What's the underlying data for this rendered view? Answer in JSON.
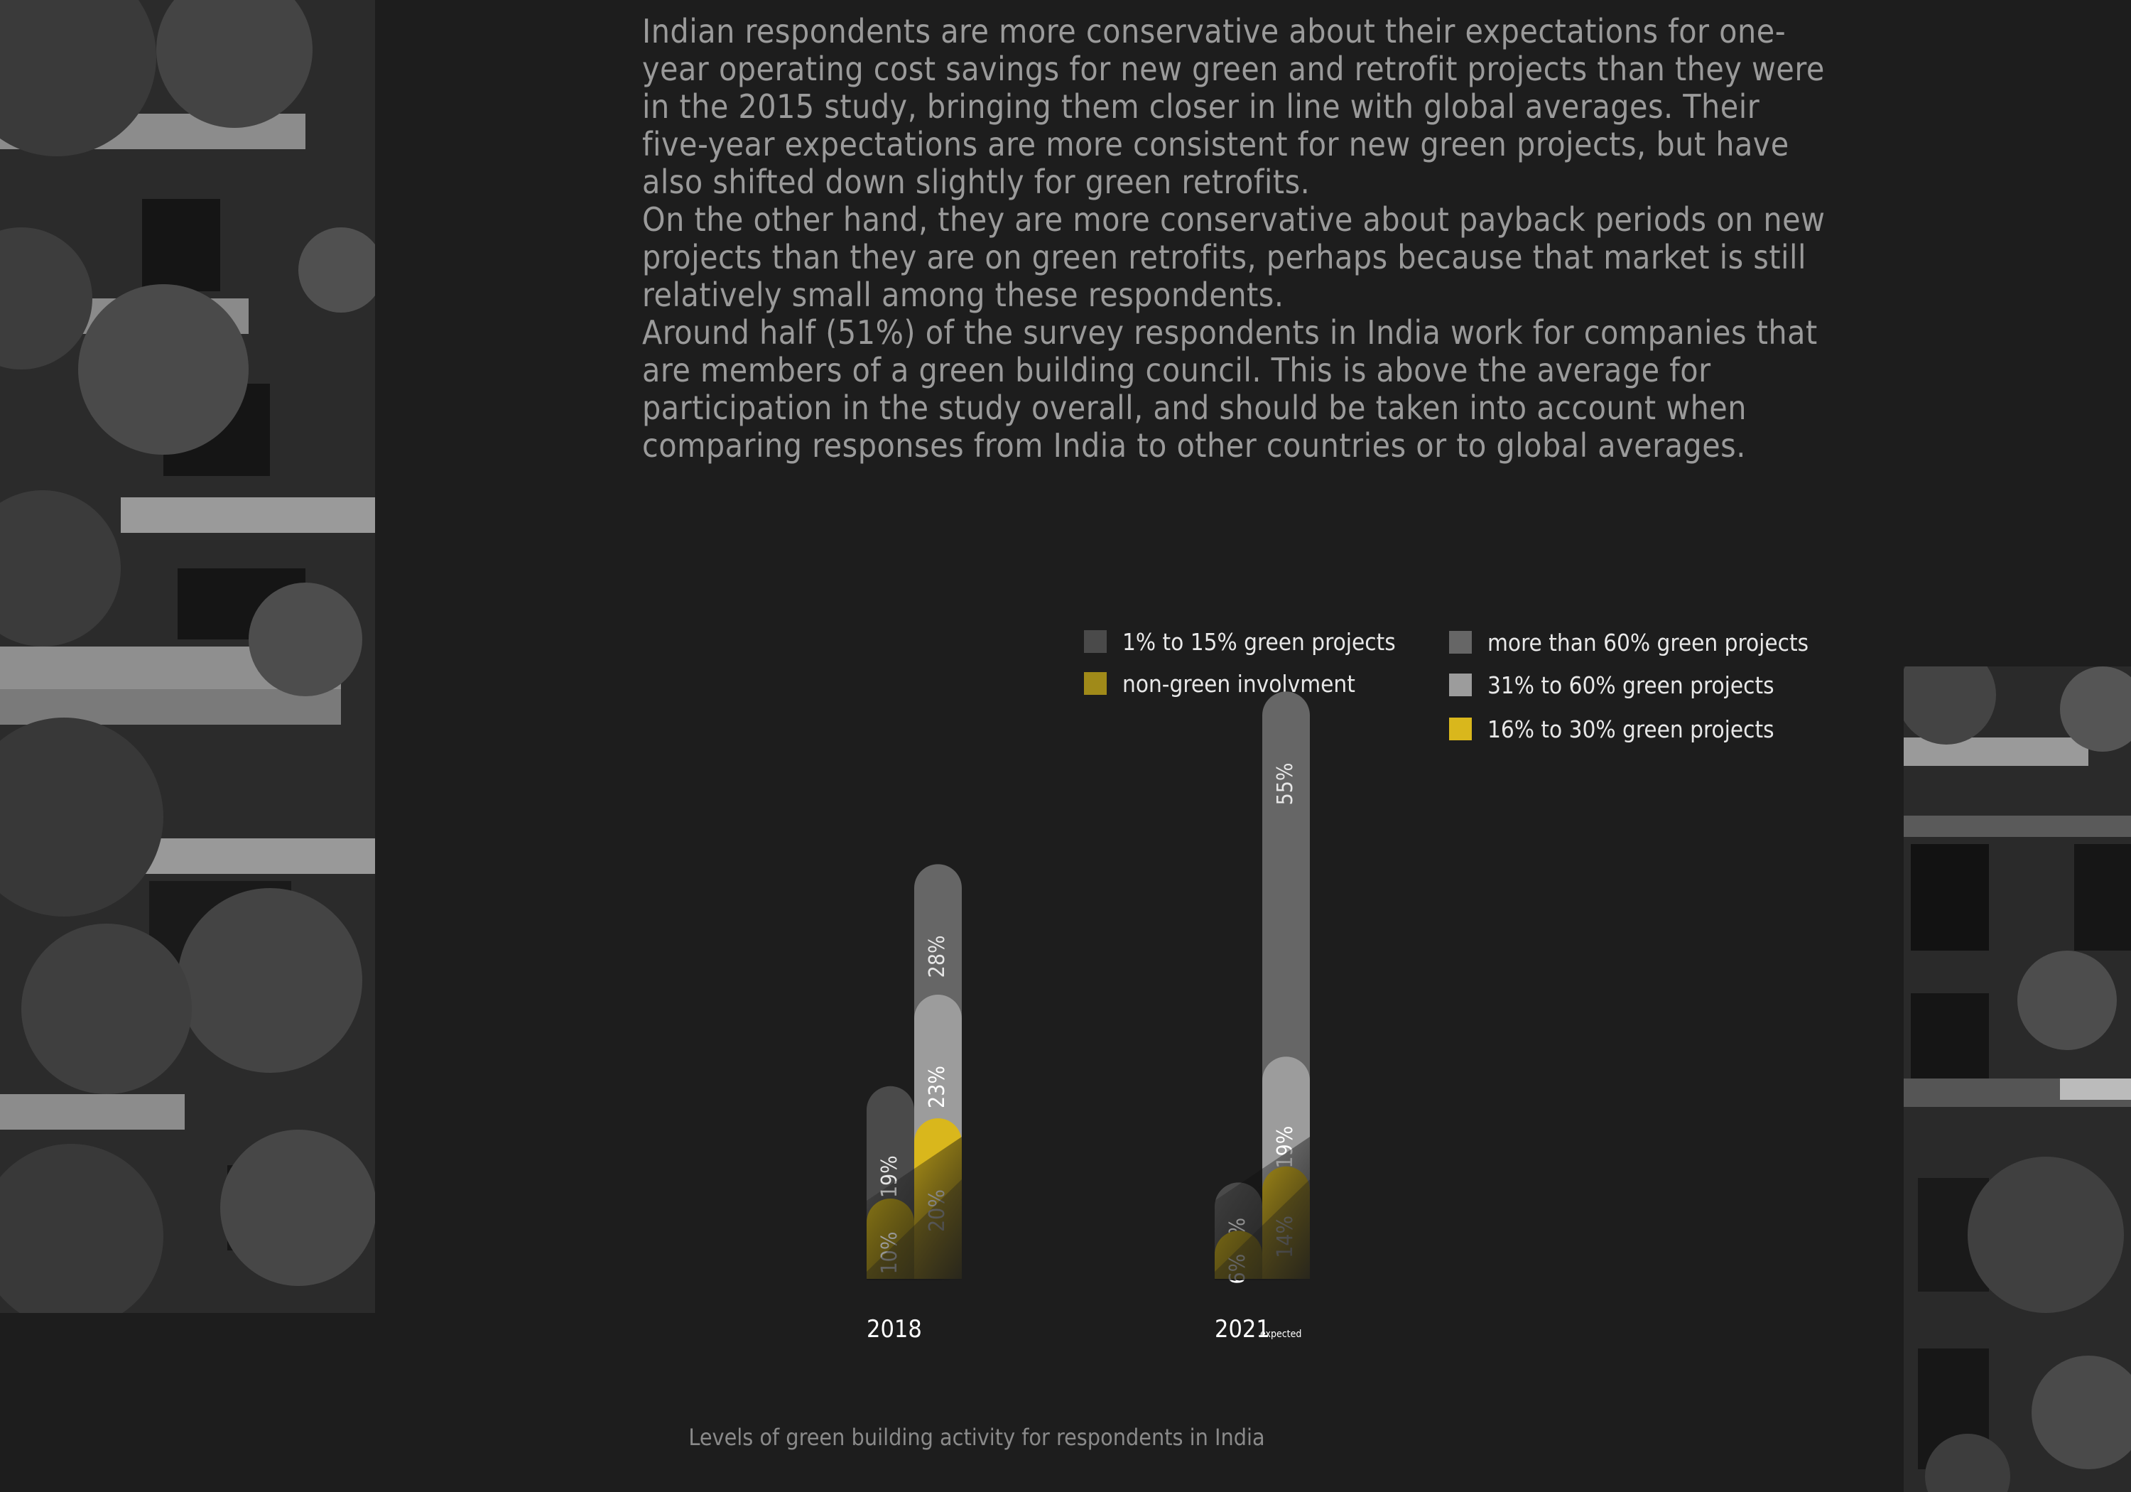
{
  "paragraphs": [
    "Indian respondents are more conservative about their expectations for one-year operating cost savings for new green and retrofit projects than they were in the 2015 study, bringing them closer in line with global averages. Their five-year expectations are more consistent for new green projects, but have also shifted down slightly for green retrofits.",
    "On the other hand, they are more conservative about payback periods on new projects than they are on green retrofits, perhaps because that market is still relatively small among these respondents.",
    "Around half (51%) of the survey respondents in India work for companies that are members of a green building council. This is above the average for participation in the study overall, and should be taken into account when comparing responses from India to other countries or to global averages."
  ],
  "caption": "Levels of green building activity for respondents in India",
  "colors": {
    "background": "#1d1d1d",
    "non_green": "#a08a19",
    "low": "#4a4a4a",
    "mid": "#d9b71c",
    "high": "#9c9c9c",
    "top": "#666666"
  },
  "chart_data": {
    "type": "bar",
    "categories": [
      {
        "label": "2018",
        "sub": ""
      },
      {
        "label": "2021",
        "sub": "expected"
      }
    ],
    "legend": [
      {
        "key": "low",
        "label": "1% to 15% green projects"
      },
      {
        "key": "non_green",
        "label": "non-green involvment"
      },
      {
        "key": "top",
        "label": "more than 60% green projects"
      },
      {
        "key": "high",
        "label": "31% to 60% green projects"
      },
      {
        "key": "mid",
        "label": "16% to 30% green projects"
      }
    ],
    "series": [
      {
        "key": "non_green",
        "name": "non-green involvment",
        "values": [
          10,
          6
        ]
      },
      {
        "key": "low",
        "name": "1% to 15% green projects",
        "values": [
          19,
          9
        ]
      },
      {
        "key": "mid",
        "name": "16% to 30% green projects",
        "values": [
          20,
          14
        ]
      },
      {
        "key": "high",
        "name": "31% to 60% green projects",
        "values": [
          23,
          19
        ]
      },
      {
        "key": "top",
        "name": "more than 60% green projects",
        "values": [
          28,
          55
        ]
      }
    ],
    "value_suffix": "%"
  }
}
